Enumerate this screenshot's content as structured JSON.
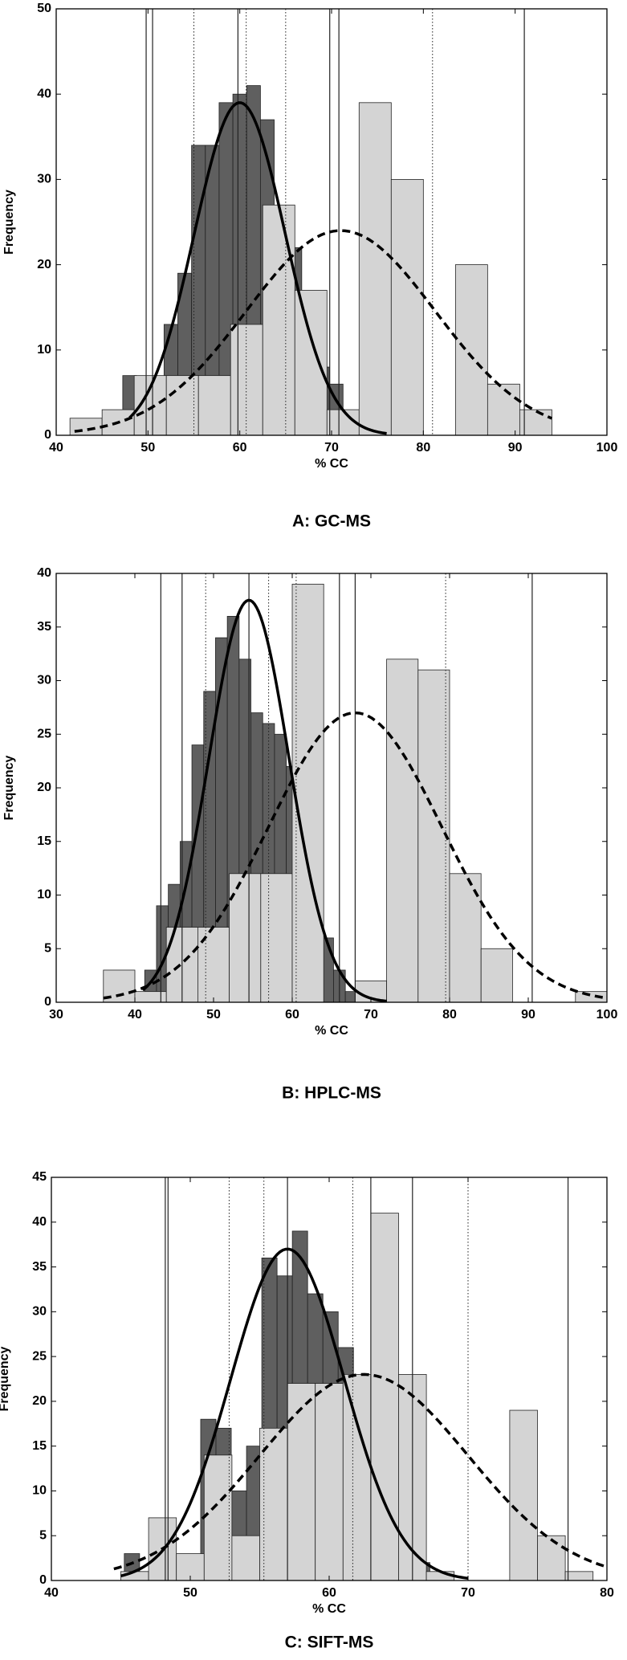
{
  "chart_data": [
    {
      "type": "histogram",
      "caption": "A: GC-MS",
      "xlabel": "% CC",
      "ylabel": "Frequency",
      "xlim": [
        40,
        100
      ],
      "ylim": [
        0,
        50
      ],
      "xticks": [
        40,
        50,
        60,
        70,
        80,
        90,
        100
      ],
      "yticks": [
        0,
        10,
        20,
        30,
        40,
        50
      ],
      "series": [
        {
          "color": "#5f5f5f",
          "bins": [
            47.25,
            48.75,
            50.25,
            51.75,
            53.25,
            54.75,
            56.25,
            57.75,
            59.25,
            60.75,
            62.25,
            63.75,
            65.25,
            66.75,
            68.25,
            69.75,
            71.25,
            72.75,
            74.25
          ],
          "values": [
            7,
            5,
            6,
            13,
            19,
            34,
            34,
            39,
            40,
            41,
            37,
            17,
            22,
            10,
            8,
            6,
            2,
            1
          ]
        },
        {
          "color": "#d4d4d4",
          "bins": [
            41.5,
            45,
            48.5,
            52,
            55.5,
            59,
            62.5,
            66,
            69.5,
            73,
            76.5,
            80,
            83.5,
            87,
            90.5,
            94
          ],
          "values": [
            2,
            3,
            7,
            7,
            7,
            13,
            27,
            17,
            3,
            39,
            30,
            0,
            20,
            6,
            3
          ]
        }
      ],
      "curves": [
        {
          "style": "solid",
          "peak": 39,
          "mean": 60,
          "sd": 4.95,
          "xrange": [
            48,
            76
          ]
        },
        {
          "style": "dashed",
          "peak": 24,
          "mean": 71,
          "sd": 10.3,
          "xrange": [
            42,
            94
          ]
        }
      ],
      "vlines": [
        {
          "style": "solid",
          "x": [
            49.8,
            50.5,
            59.8,
            69.8,
            70.8,
            91
          ]
        },
        {
          "style": "dotted",
          "x": [
            55,
            60.7,
            65,
            81
          ]
        }
      ]
    },
    {
      "type": "histogram",
      "caption": "B: HPLC-MS",
      "xlabel": "% CC",
      "ylabel": "Frequency",
      "xlim": [
        30,
        100
      ],
      "ylim": [
        0,
        40
      ],
      "xticks": [
        30,
        40,
        50,
        60,
        70,
        80,
        90,
        100
      ],
      "yticks": [
        0,
        5,
        10,
        15,
        20,
        25,
        30,
        35,
        40
      ],
      "series": [
        {
          "color": "#5f5f5f",
          "bins": [
            41.25,
            42.75,
            44.25,
            45.75,
            47.25,
            48.75,
            50.25,
            51.75,
            53.25,
            54.75,
            56.25,
            57.75,
            59.25,
            60.75,
            62.25,
            63.75,
            65.25,
            66.75,
            68.25,
            69.75
          ],
          "values": [
            3,
            9,
            11,
            15,
            24,
            29,
            34,
            36,
            32,
            27,
            26,
            25,
            22,
            19,
            15,
            6,
            3,
            1,
            1
          ]
        },
        {
          "color": "#d4d4d4",
          "bins": [
            36,
            40,
            44,
            48,
            52,
            56,
            60,
            64,
            68,
            72,
            76,
            80,
            84,
            88,
            92,
            96,
            100
          ],
          "values": [
            3,
            1,
            7,
            7,
            12,
            12,
            39,
            0,
            2,
            32,
            31,
            12,
            5,
            0,
            0,
            1
          ]
        }
      ],
      "curves": [
        {
          "style": "solid",
          "peak": 37.5,
          "mean": 54.5,
          "sd": 5.1,
          "xrange": [
            41,
            72
          ]
        },
        {
          "style": "dashed",
          "peak": 27,
          "mean": 68,
          "sd": 11,
          "xrange": [
            36,
            100
          ]
        }
      ],
      "vlines": [
        {
          "style": "solid",
          "x": [
            43.3,
            46,
            54.5,
            66,
            68,
            90.5
          ]
        },
        {
          "style": "dotted",
          "x": [
            49,
            57,
            60.5,
            79.5
          ]
        }
      ]
    },
    {
      "type": "histogram",
      "caption": "C: SIFT-MS",
      "xlabel": "% CC",
      "ylabel": "Frequency",
      "xlim": [
        40,
        80
      ],
      "ylim": [
        0,
        45
      ],
      "xticks": [
        40,
        50,
        60,
        70,
        80
      ],
      "yticks": [
        0,
        5,
        10,
        15,
        20,
        25,
        30,
        35,
        40,
        45
      ],
      "series": [
        {
          "color": "#5f5f5f",
          "bins": [
            45.25,
            46.35,
            47.45,
            48.55,
            49.65,
            50.75,
            51.85,
            52.95,
            54.05,
            55.15,
            56.25,
            57.35,
            58.45,
            59.55,
            60.65,
            61.75,
            62.85,
            63.95,
            65.05,
            66.15,
            67.25,
            68.35
          ],
          "values": [
            3,
            1,
            2,
            2,
            0,
            18,
            17,
            10,
            15,
            36,
            34,
            39,
            32,
            30,
            26,
            22,
            23,
            13,
            4,
            2,
            1
          ]
        },
        {
          "color": "#d4d4d4",
          "bins": [
            45,
            47,
            49,
            51,
            53,
            55,
            57,
            59,
            61,
            63,
            65,
            67,
            69,
            71,
            73,
            75,
            77,
            79
          ],
          "values": [
            1,
            7,
            3,
            14,
            5,
            17,
            22,
            22,
            23,
            41,
            23,
            1,
            0,
            0,
            19,
            5,
            1
          ]
        }
      ],
      "curves": [
        {
          "style": "solid",
          "peak": 37,
          "mean": 57,
          "sd": 4.1,
          "xrange": [
            45,
            70
          ]
        },
        {
          "style": "dashed",
          "peak": 23,
          "mean": 62.5,
          "sd": 7.5,
          "xrange": [
            44.5,
            80
          ]
        }
      ],
      "vlines": [
        {
          "style": "solid",
          "x": [
            48.2,
            48.4,
            57,
            63,
            66,
            77.2
          ]
        },
        {
          "style": "dotted",
          "x": [
            52.8,
            55.3,
            61.7,
            70
          ]
        }
      ]
    }
  ]
}
